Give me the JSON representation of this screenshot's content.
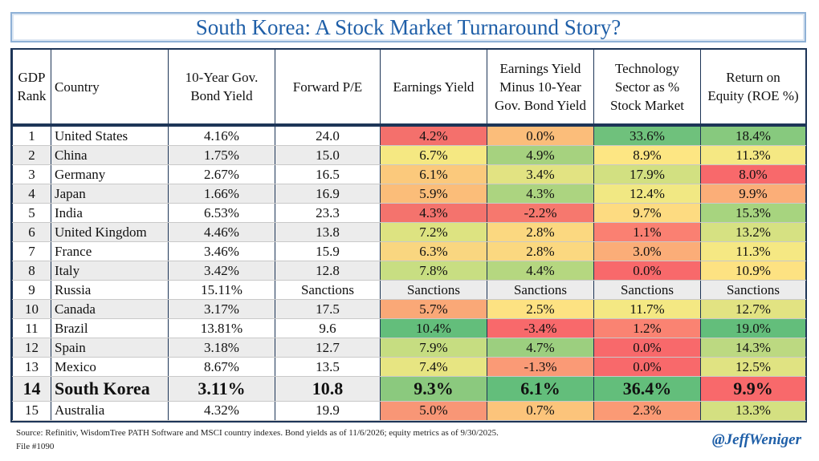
{
  "title": "South Korea: A Stock Market Turnaround Story?",
  "headers": {
    "rank": [
      "GDP",
      "Rank"
    ],
    "country": "Country",
    "bond": [
      "10-Year Gov.",
      "Bond Yield"
    ],
    "pe": "Forward P/E",
    "ey": "Earnings Yield",
    "spread": [
      "Earnings Yield",
      "Minus 10-Year",
      "Gov. Bond Yield"
    ],
    "tech": [
      "Technology",
      "Sector as %",
      "Stock Market"
    ],
    "roe": [
      "Return on",
      "Equity (ROE %)"
    ]
  },
  "chart_data": {
    "type": "table",
    "title": "South Korea: A Stock Market Turnaround Story?",
    "columns": [
      "GDP Rank",
      "Country",
      "10-Year Gov. Bond Yield",
      "Forward P/E",
      "Earnings Yield",
      "Earnings Yield Minus 10-Year Gov. Bond Yield",
      "Technology Sector as % Stock Market",
      "Return on Equity (ROE %)"
    ],
    "rows": [
      {
        "rank": "1",
        "country": "United States",
        "bond": "4.16%",
        "pe": "24.0",
        "ey": "4.2%",
        "spread": "0.0%",
        "tech": "33.6%",
        "roe": "18.4%"
      },
      {
        "rank": "2",
        "country": "China",
        "bond": "1.75%",
        "pe": "15.0",
        "ey": "6.7%",
        "spread": "4.9%",
        "tech": "8.9%",
        "roe": "11.3%"
      },
      {
        "rank": "3",
        "country": "Germany",
        "bond": "2.67%",
        "pe": "16.5",
        "ey": "6.1%",
        "spread": "3.4%",
        "tech": "17.9%",
        "roe": "8.0%"
      },
      {
        "rank": "4",
        "country": "Japan",
        "bond": "1.66%",
        "pe": "16.9",
        "ey": "5.9%",
        "spread": "4.3%",
        "tech": "12.4%",
        "roe": "9.9%"
      },
      {
        "rank": "5",
        "country": "India",
        "bond": "6.53%",
        "pe": "23.3",
        "ey": "4.3%",
        "spread": "-2.2%",
        "tech": "9.7%",
        "roe": "15.3%"
      },
      {
        "rank": "6",
        "country": "United Kingdom",
        "bond": "4.46%",
        "pe": "13.8",
        "ey": "7.2%",
        "spread": "2.8%",
        "tech": "1.1%",
        "roe": "13.2%"
      },
      {
        "rank": "7",
        "country": "France",
        "bond": "3.46%",
        "pe": "15.9",
        "ey": "6.3%",
        "spread": "2.8%",
        "tech": "3.0%",
        "roe": "11.3%"
      },
      {
        "rank": "8",
        "country": "Italy",
        "bond": "3.42%",
        "pe": "12.8",
        "ey": "7.8%",
        "spread": "4.4%",
        "tech": "0.0%",
        "roe": "10.9%"
      },
      {
        "rank": "9",
        "country": "Russia",
        "bond": "15.11%",
        "pe": "Sanctions",
        "ey": "Sanctions",
        "spread": "Sanctions",
        "tech": "Sanctions",
        "roe": "Sanctions"
      },
      {
        "rank": "10",
        "country": "Canada",
        "bond": "3.17%",
        "pe": "17.5",
        "ey": "5.7%",
        "spread": "2.5%",
        "tech": "11.7%",
        "roe": "12.7%"
      },
      {
        "rank": "11",
        "country": "Brazil",
        "bond": "13.81%",
        "pe": "9.6",
        "ey": "10.4%",
        "spread": "-3.4%",
        "tech": "1.2%",
        "roe": "19.0%"
      },
      {
        "rank": "12",
        "country": "Spain",
        "bond": "3.18%",
        "pe": "12.7",
        "ey": "7.9%",
        "spread": "4.7%",
        "tech": "0.0%",
        "roe": "14.3%"
      },
      {
        "rank": "13",
        "country": "Mexico",
        "bond": "8.67%",
        "pe": "13.5",
        "ey": "7.4%",
        "spread": "-1.3%",
        "tech": "0.0%",
        "roe": "12.5%"
      },
      {
        "rank": "14",
        "country": "South Korea",
        "bond": "3.11%",
        "pe": "10.8",
        "ey": "9.3%",
        "spread": "6.1%",
        "tech": "36.4%",
        "roe": "9.9%"
      },
      {
        "rank": "15",
        "country": "Australia",
        "bond": "4.32%",
        "pe": "19.9",
        "ey": "5.0%",
        "spread": "0.7%",
        "tech": "2.3%",
        "roe": "13.3%"
      }
    ],
    "highlight_row": "South Korea",
    "heat_colors": {
      "ey": [
        "#f4706c",
        "#f5e882",
        "#fbc97c",
        "#fbbd79",
        "#f4736d",
        "#dde381",
        "#f9d680",
        "#c8de82",
        "",
        "#faa877",
        "#63be7b",
        "#c6dd81",
        "#e7e582",
        "#8bc97e",
        "#f89676"
      ],
      "spread": [
        "#fbbd7a",
        "#a6d27f",
        "#e2e382",
        "#acd480",
        "#f6786e",
        "#fbd880",
        "#fbd880",
        "#b5d780",
        "",
        "#fde282",
        "#f8696b",
        "#9ccf7f",
        "#fa9a76",
        "#63be7b",
        "#fcc47b"
      ],
      "tech": [
        "#6fc17c",
        "#fde683",
        "#d2e081",
        "#f1e883",
        "#fddb81",
        "#fa8072",
        "#fbad78",
        "#f8696b",
        "",
        "#f4e883",
        "#fa8372",
        "#f8696b",
        "#f8696b",
        "#63be7b",
        "#fb9a75"
      ],
      "roe": [
        "#87c97e",
        "#f5e883",
        "#f8696b",
        "#fbae78",
        "#a7d47f",
        "#d6e182",
        "#f5e883",
        "#fde282",
        "",
        "#e2e382",
        "#63be7b",
        "#bcd981",
        "#e0e382",
        "#f8696b",
        "#d4e081"
      ]
    }
  },
  "footer": {
    "source": "Source: Refinitiv, WisdomTree PATH Software and MSCI country indexes. Bond yields as of 11/6/2026; equity metrics as of 9/30/2025.",
    "file": "File #1090",
    "handle": "@JeffWeniger"
  }
}
